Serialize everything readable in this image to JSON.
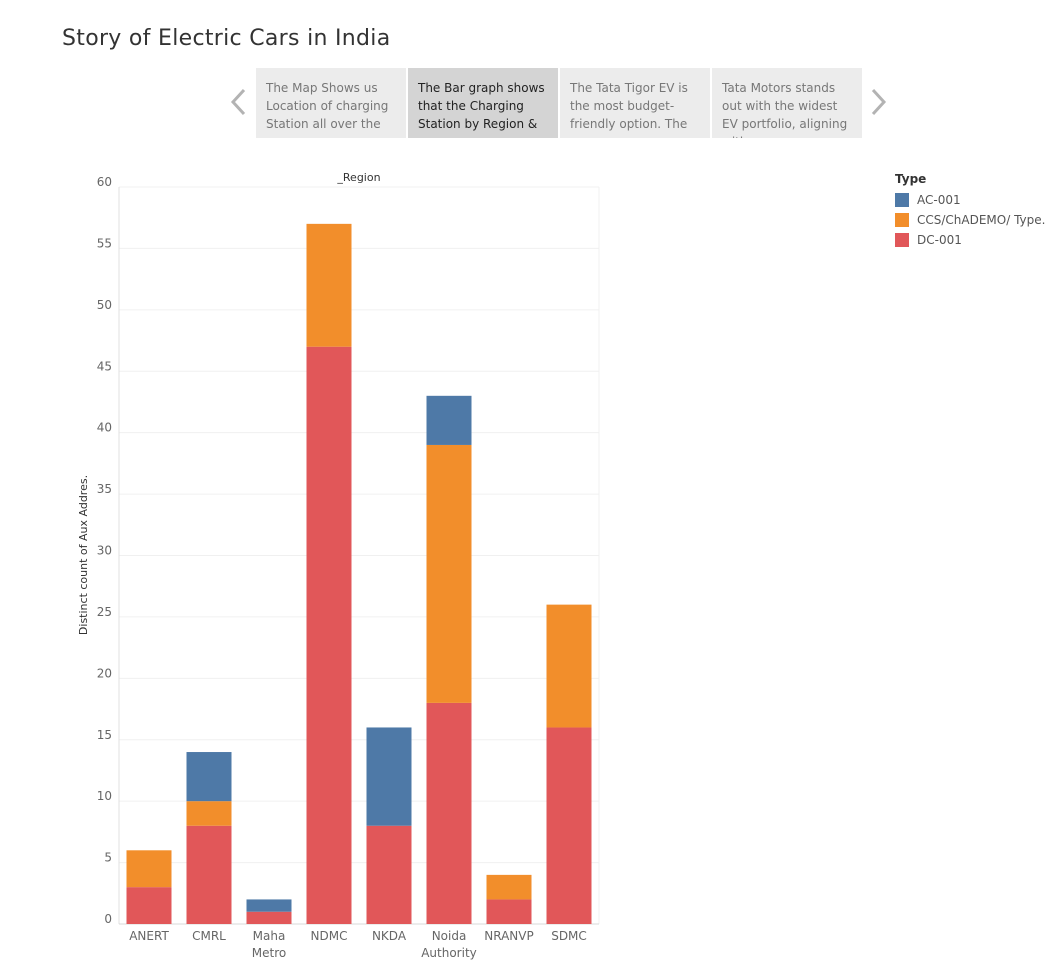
{
  "story": {
    "title": "Story of Electric Cars in India",
    "prev_icon": "chevron-left-icon",
    "next_icon": "chevron-right-icon",
    "points": [
      {
        "text": "The Map Shows us Location of charging Station all over the",
        "active": false
      },
      {
        "text": "The Bar graph shows that the Charging Station by Region &",
        "active": true
      },
      {
        "text": "The Tata Tigor EV is the most budget-friendly option. The",
        "active": false
      },
      {
        "text": "Tata Motors stands out with the widest EV portfolio, aligning with",
        "active": false
      }
    ]
  },
  "legend": {
    "title": "Type",
    "items": [
      {
        "label": "AC-001",
        "color": "#4e79a7"
      },
      {
        "label": "CCS/ChADEMO/ Type..",
        "color": "#f28e2b"
      },
      {
        "label": "DC-001",
        "color": "#e15759"
      }
    ]
  },
  "chart_data": {
    "type": "bar",
    "stacked": true,
    "title": "_Region",
    "xlabel": "",
    "ylabel": "Distinct count of Aux Addres.",
    "ylim": [
      0,
      60
    ],
    "yticks": [
      0,
      5,
      10,
      15,
      20,
      25,
      30,
      35,
      40,
      45,
      50,
      55,
      60
    ],
    "grid": true,
    "legend_position": "top-right",
    "categories": [
      "ANERT",
      "CMRL",
      "Maha Metro",
      "NDMC",
      "NKDA",
      "Noida Authority",
      "NRANVP",
      "SDMC"
    ],
    "series": [
      {
        "name": "DC-001",
        "color": "#e15759",
        "values": [
          3,
          8,
          1,
          47,
          8,
          18,
          2,
          16
        ]
      },
      {
        "name": "CCS/ChADEMO/ Type..",
        "color": "#f28e2b",
        "values": [
          3,
          2,
          0,
          10,
          0,
          21,
          2,
          10
        ]
      },
      {
        "name": "AC-001",
        "color": "#4e79a7",
        "values": [
          0,
          4,
          1,
          0,
          8,
          4,
          0,
          0
        ]
      }
    ]
  }
}
